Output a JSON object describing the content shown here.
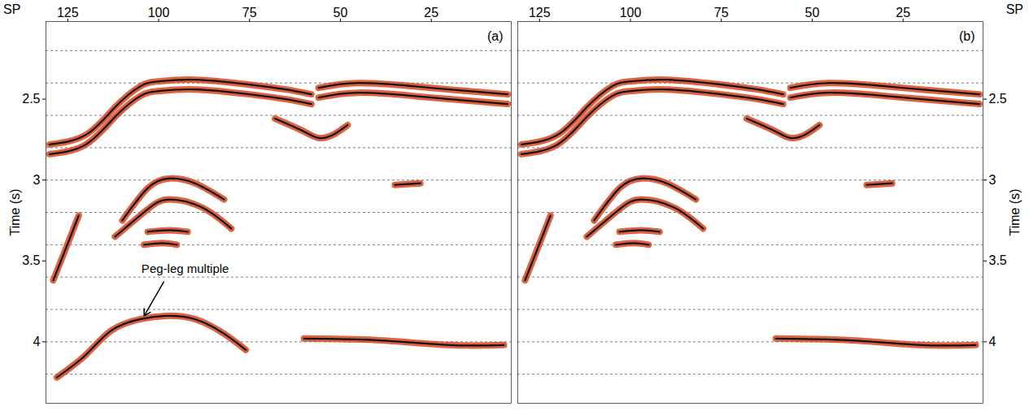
{
  "chart_data": [
    {
      "type": "line",
      "title": "(a)",
      "xlabel": "SP",
      "ylabel": "Time (s)",
      "xlim": [
        131,
        3
      ],
      "ylim": [
        2.02,
        4.38
      ],
      "xticks": [
        125,
        100,
        75,
        50,
        25
      ],
      "yticks": [
        2.5,
        3,
        3.5,
        4
      ],
      "grid_times": [
        2.2,
        2.4,
        2.6,
        2.8,
        3.0,
        3.2,
        3.4,
        3.6,
        3.8,
        4.0,
        4.2
      ],
      "grid": true,
      "color": "#d9461c",
      "series": [
        {
          "color": "#111111",
          "x": [
            130,
            120,
            112,
            105,
            100,
            90,
            75,
            65,
            58
          ],
          "values": [
            2.78,
            2.72,
            2.55,
            2.42,
            2.39,
            2.38,
            2.41,
            2.44,
            2.47
          ]
        },
        {
          "color": "#111111",
          "x": [
            56,
            45,
            30,
            20,
            4
          ],
          "values": [
            2.43,
            2.4,
            2.42,
            2.44,
            2.47
          ]
        },
        {
          "color": "#111111",
          "x": [
            130,
            120,
            112,
            105,
            100,
            90,
            75,
            65,
            58
          ],
          "values": [
            2.84,
            2.78,
            2.61,
            2.48,
            2.45,
            2.44,
            2.47,
            2.5,
            2.53
          ]
        },
        {
          "color": "#111111",
          "x": [
            56,
            45,
            30,
            20,
            4
          ],
          "values": [
            2.49,
            2.46,
            2.48,
            2.5,
            2.53
          ]
        },
        {
          "color": "#111111",
          "x": [
            68,
            60,
            56,
            52,
            48
          ],
          "values": [
            2.62,
            2.7,
            2.74,
            2.72,
            2.66
          ]
        },
        {
          "color": "#111111",
          "x": [
            110,
            103,
            97,
            90,
            82
          ],
          "values": [
            3.25,
            3.05,
            2.99,
            3.02,
            3.12
          ]
        },
        {
          "color": "#111111",
          "x": [
            112,
            103,
            97,
            88,
            80
          ],
          "values": [
            3.35,
            3.18,
            3.12,
            3.17,
            3.3
          ]
        },
        {
          "color": "#111111",
          "x": [
            103,
            97,
            92
          ],
          "values": [
            3.32,
            3.31,
            3.32
          ]
        },
        {
          "color": "#111111",
          "x": [
            104,
            99,
            95
          ],
          "values": [
            3.4,
            3.39,
            3.4
          ]
        },
        {
          "color": "#111111",
          "x": [
            129,
            126,
            122
          ],
          "values": [
            3.62,
            3.45,
            3.22
          ]
        },
        {
          "color": "#111111",
          "x": [
            128,
            120,
            113,
            105,
            98,
            90,
            82,
            76
          ],
          "values": [
            4.22,
            4.08,
            3.93,
            3.86,
            3.84,
            3.86,
            3.95,
            4.05
          ]
        },
        {
          "color": "#111111",
          "x": [
            60,
            40,
            20,
            5
          ],
          "values": [
            3.98,
            3.99,
            4.02,
            4.02
          ]
        },
        {
          "color": "#111111",
          "x": [
            35,
            28
          ],
          "values": [
            3.03,
            3.02
          ]
        }
      ],
      "annotations": [
        {
          "text": "Peg-leg multiple",
          "x": 92.7,
          "y": 3.55,
          "arrow_from": [
            98.6,
            3.63
          ],
          "arrow_to": [
            104,
            3.84
          ]
        }
      ]
    },
    {
      "type": "line",
      "title": "(b)",
      "xlabel": "SP",
      "ylabel": "Time (s)",
      "xlim": [
        131,
        3
      ],
      "ylim": [
        2.02,
        4.38
      ],
      "xticks": [
        125,
        100,
        75,
        50,
        25
      ],
      "yticks": [
        2.5,
        3,
        3.5,
        4
      ],
      "grid_times": [
        2.2,
        2.4,
        2.6,
        2.8,
        3.0,
        3.2,
        3.4,
        3.6,
        3.8,
        4.0,
        4.2
      ],
      "grid": true,
      "color": "#d9461c",
      "series": [
        {
          "color": "#111111",
          "x": [
            130,
            120,
            112,
            105,
            100,
            90,
            75,
            65,
            58
          ],
          "values": [
            2.78,
            2.72,
            2.55,
            2.42,
            2.39,
            2.38,
            2.41,
            2.44,
            2.47
          ]
        },
        {
          "color": "#111111",
          "x": [
            56,
            45,
            30,
            20,
            4
          ],
          "values": [
            2.43,
            2.4,
            2.42,
            2.44,
            2.47
          ]
        },
        {
          "color": "#111111",
          "x": [
            130,
            120,
            112,
            105,
            100,
            90,
            75,
            65,
            58
          ],
          "values": [
            2.84,
            2.78,
            2.61,
            2.48,
            2.45,
            2.44,
            2.47,
            2.5,
            2.53
          ]
        },
        {
          "color": "#111111",
          "x": [
            56,
            45,
            30,
            20,
            4
          ],
          "values": [
            2.49,
            2.46,
            2.48,
            2.5,
            2.53
          ]
        },
        {
          "color": "#111111",
          "x": [
            68,
            60,
            56,
            52,
            48
          ],
          "values": [
            2.62,
            2.7,
            2.74,
            2.72,
            2.66
          ]
        },
        {
          "color": "#111111",
          "x": [
            110,
            103,
            97,
            90,
            82
          ],
          "values": [
            3.25,
            3.05,
            2.99,
            3.02,
            3.12
          ]
        },
        {
          "color": "#111111",
          "x": [
            112,
            103,
            97,
            88,
            80
          ],
          "values": [
            3.35,
            3.18,
            3.12,
            3.17,
            3.3
          ]
        },
        {
          "color": "#111111",
          "x": [
            103,
            97,
            92
          ],
          "values": [
            3.32,
            3.31,
            3.32
          ]
        },
        {
          "color": "#111111",
          "x": [
            104,
            99,
            95
          ],
          "values": [
            3.4,
            3.39,
            3.4
          ]
        },
        {
          "color": "#111111",
          "x": [
            129,
            126,
            122
          ],
          "values": [
            3.62,
            3.45,
            3.22
          ]
        },
        {
          "color": "#111111",
          "x": [
            60,
            40,
            20,
            5
          ],
          "values": [
            3.98,
            3.99,
            4.02,
            4.02
          ]
        },
        {
          "color": "#111111",
          "x": [
            35,
            28
          ],
          "values": [
            3.03,
            3.02
          ]
        }
      ],
      "annotations": []
    }
  ]
}
